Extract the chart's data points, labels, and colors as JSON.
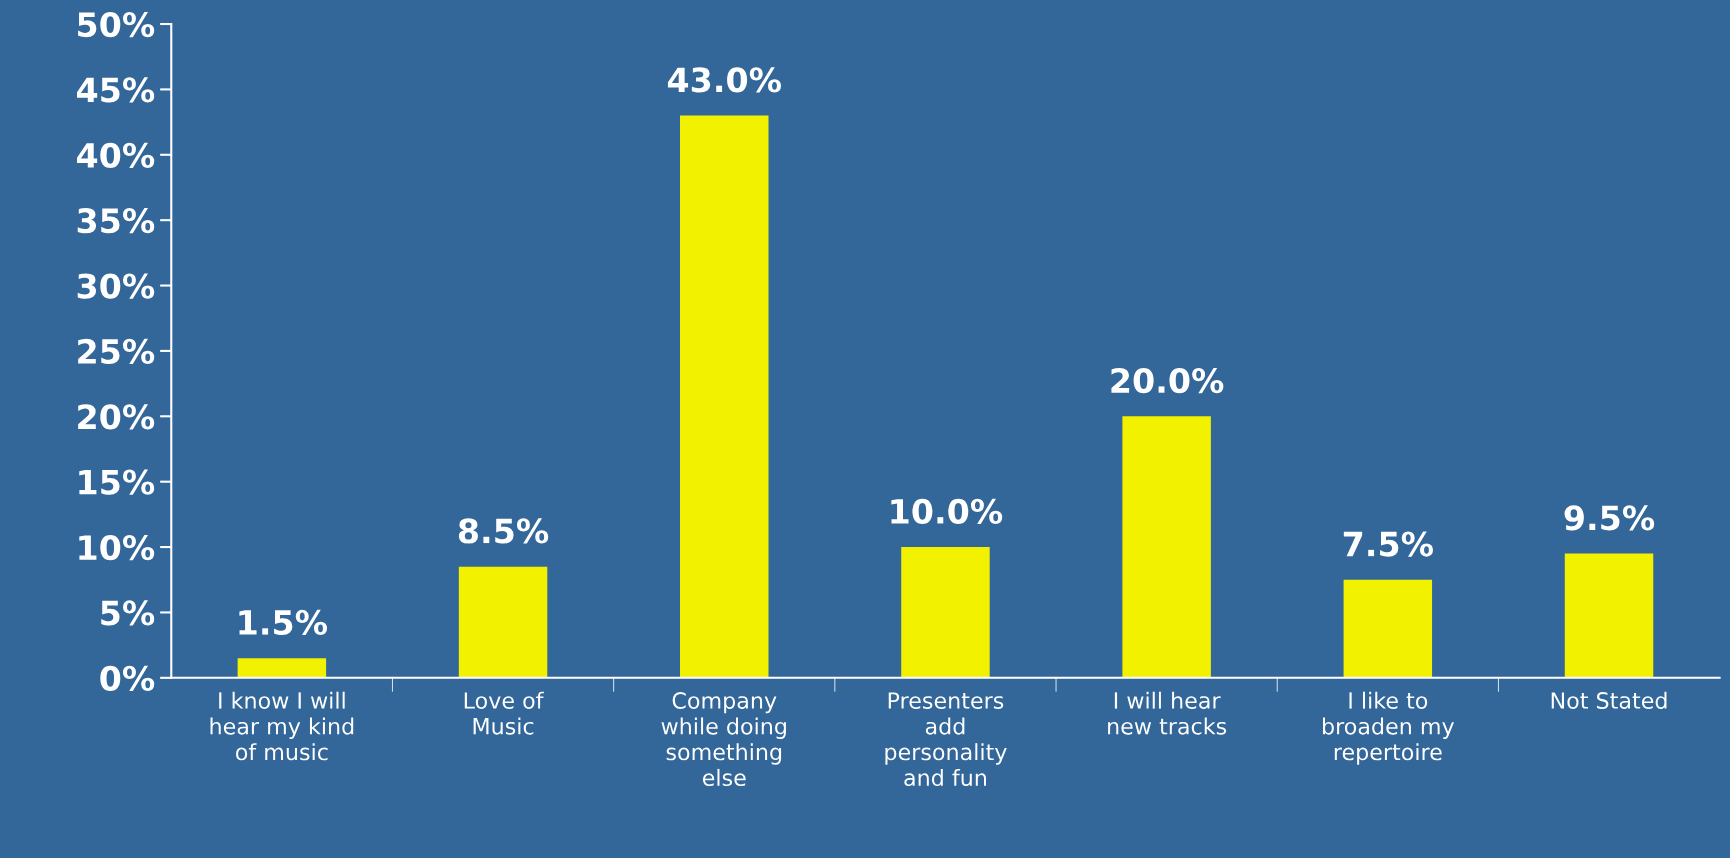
{
  "chart_data": {
    "type": "bar",
    "categories": [
      "I know I will\nhear my kind\nof music",
      "Love of\nMusic",
      "Company\nwhile doing\nsomething\nelse",
      "Presenters\nadd\npersonality\nand fun",
      "I will hear\nnew tracks",
      "I like to\nbroaden my\nrepertoire",
      "Not Stated"
    ],
    "values": [
      1.5,
      8.5,
      43.0,
      10.0,
      20.0,
      7.5,
      9.5
    ],
    "value_labels": [
      "1.5%",
      "8.5%",
      "43.0%",
      "10.0%",
      "20.0%",
      "7.5%",
      "9.5%"
    ],
    "color": "#f2f200",
    "ylim": [
      0,
      50
    ],
    "yticks": [
      {
        "value": 0,
        "label": "0%"
      },
      {
        "value": 5,
        "label": "5%"
      },
      {
        "value": 10,
        "label": "10%"
      },
      {
        "value": 15,
        "label": "15%"
      },
      {
        "value": 20,
        "label": "20%"
      },
      {
        "value": 25,
        "label": "25%"
      },
      {
        "value": 30,
        "label": "30%"
      },
      {
        "value": 35,
        "label": "35%"
      },
      {
        "value": 40,
        "label": "40%"
      },
      {
        "value": 45,
        "label": "45%"
      },
      {
        "value": 50,
        "label": "50%"
      }
    ],
    "grid": false,
    "legend": false
  }
}
